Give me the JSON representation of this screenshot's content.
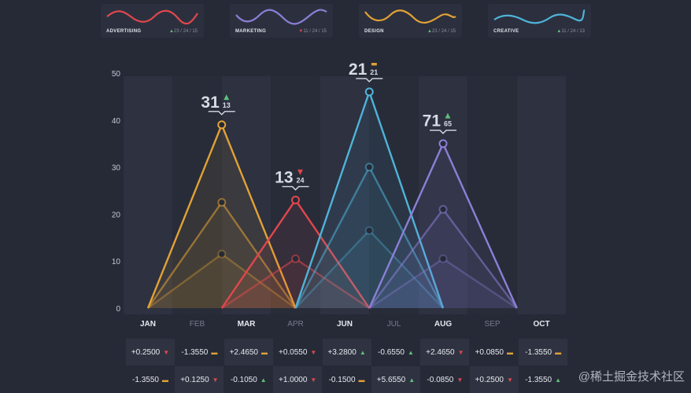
{
  "legend_cards": [
    {
      "name": "ADVERTISING",
      "color": "#e0474c",
      "stat1_arrow": "▲",
      "stat1": "23",
      "stat2": "24",
      "stat3": "15",
      "stat1_status": "up"
    },
    {
      "name": "MARKETING",
      "color": "#8b7fd6",
      "stat1_arrow": "▼",
      "stat1": "11",
      "stat2": "24",
      "stat3": "15",
      "stat1_status": "down"
    },
    {
      "name": "DESIGN",
      "color": "#e2a235",
      "stat1_arrow": "▲",
      "stat1": "23",
      "stat2": "24",
      "stat3": "15",
      "stat1_status": "up"
    },
    {
      "name": "CREATIVE",
      "color": "#4fb3d9",
      "stat1_arrow": "▲",
      "stat1": "11",
      "stat2": "24",
      "stat3": "13",
      "stat1_status": "up"
    }
  ],
  "chart_data": {
    "type": "area",
    "title": "",
    "xlabel": "",
    "ylabel": "",
    "categories": [
      "JAN",
      "FEB",
      "MAR",
      "APR",
      "JUN",
      "JUL",
      "AUG",
      "SEP",
      "OCT"
    ],
    "yticks": [
      0,
      10,
      20,
      30,
      40,
      50
    ],
    "ylim": [
      0,
      50
    ],
    "grid": false,
    "series": [
      {
        "name": "Design",
        "color": "#e2a235",
        "start": 0,
        "peak": 1.5,
        "end": 3,
        "peak_values": [
          39,
          22.5,
          11.5
        ],
        "label_main": "31",
        "label_sub": "13",
        "label_arrow": "▲",
        "label_status": "up"
      },
      {
        "name": "Advertising",
        "color": "#e0474c",
        "start": 1.5,
        "peak": 3,
        "end": 4.5,
        "peak_values": [
          23,
          10.5
        ],
        "label_main": "13",
        "label_sub": "24",
        "label_arrow": "▼",
        "label_status": "down"
      },
      {
        "name": "Creative",
        "color": "#4fb3d9",
        "start": 3,
        "peak": 4.5,
        "end": 6,
        "peak_values": [
          46,
          30,
          16.5
        ],
        "label_main": "21",
        "label_sub": "21",
        "label_arrow": "▬",
        "label_status": "flat"
      },
      {
        "name": "Marketing",
        "color": "#8b7fd6",
        "start": 4.5,
        "peak": 6,
        "end": 7.5,
        "peak_values": [
          35,
          21,
          10.5
        ],
        "label_main": "71",
        "label_sub": "65",
        "label_arrow": "▲",
        "label_status": "up"
      }
    ]
  },
  "value_rows": [
    [
      {
        "v": "+0.2500",
        "a": "▼",
        "s": "down"
      },
      {
        "v": "-1.3550",
        "a": "▬",
        "s": "flat"
      },
      {
        "v": "+2.4650",
        "a": "▬",
        "s": "flat"
      },
      {
        "v": "+0.0550",
        "a": "▼",
        "s": "down"
      },
      {
        "v": "+3.2800",
        "a": "▲",
        "s": "up"
      },
      {
        "v": "-0.6550",
        "a": "▲",
        "s": "up"
      },
      {
        "v": "+2.4650",
        "a": "▼",
        "s": "down"
      },
      {
        "v": "+0.0850",
        "a": "▬",
        "s": "flat"
      },
      {
        "v": "-1.3550",
        "a": "▬",
        "s": "flat"
      }
    ],
    [
      {
        "v": "-1.3550",
        "a": "▬",
        "s": "flat"
      },
      {
        "v": "+0.1250",
        "a": "▼",
        "s": "down"
      },
      {
        "v": "-0.1050",
        "a": "▲",
        "s": "up"
      },
      {
        "v": "+1.0000",
        "a": "▼",
        "s": "down"
      },
      {
        "v": "-0.1500",
        "a": "▬",
        "s": "flat"
      },
      {
        "v": "+5.6550",
        "a": "▲",
        "s": "up"
      },
      {
        "v": "-0.0850",
        "a": "▼",
        "s": "down"
      },
      {
        "v": "+0.2500",
        "a": "▼",
        "s": "down"
      },
      {
        "v": "-1.3550",
        "a": "▲",
        "s": "up"
      }
    ]
  ],
  "watermark": "@稀土掘金技术社区"
}
